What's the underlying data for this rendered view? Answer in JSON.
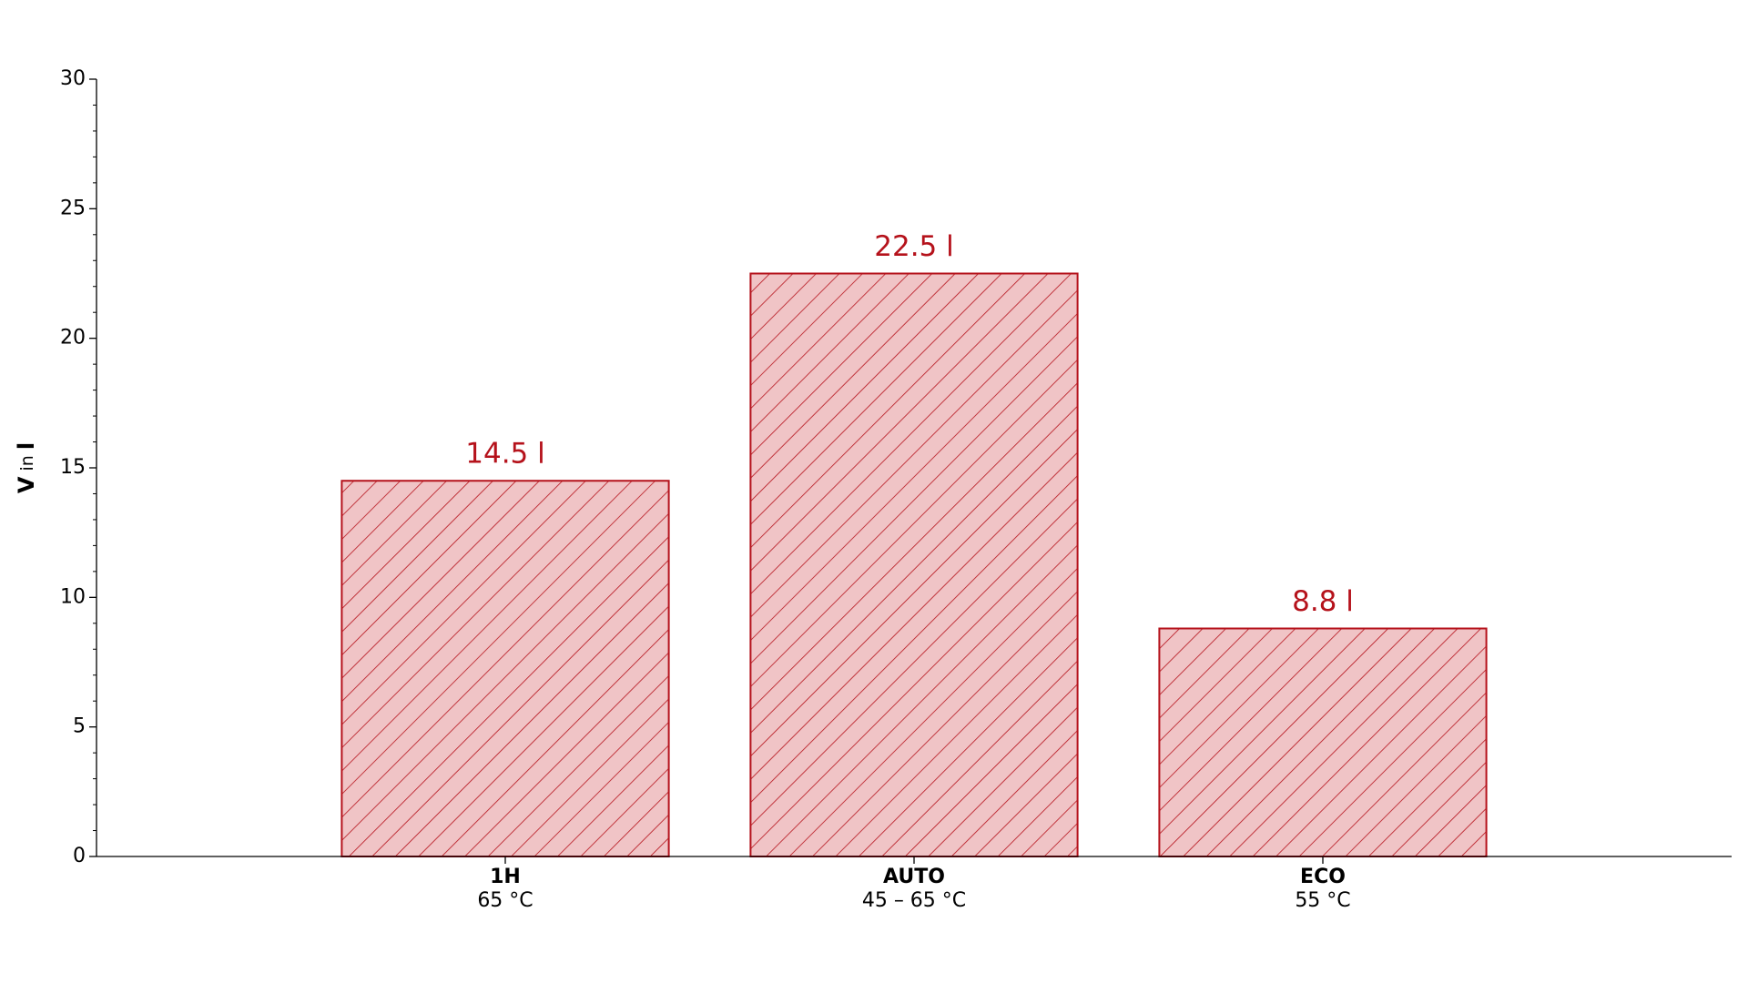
{
  "chart_data": {
    "type": "bar",
    "ylabel": {
      "symbol": "V",
      "connector": "in",
      "unit": "l"
    },
    "categories": [
      "1H",
      "AUTO",
      "ECO"
    ],
    "subcategories": [
      "65 °C",
      "45 – 65 °C",
      "55 °C"
    ],
    "values": [
      14.5,
      22.5,
      8.8
    ],
    "value_labels": [
      "14.5 l",
      "22.5 l",
      "8.8 l"
    ],
    "color": "#b5121b",
    "fill": "#f0c4c6",
    "hatch": true,
    "ylim": [
      0,
      30
    ],
    "yticks": [
      0,
      5,
      10,
      15,
      20,
      25,
      30
    ]
  }
}
